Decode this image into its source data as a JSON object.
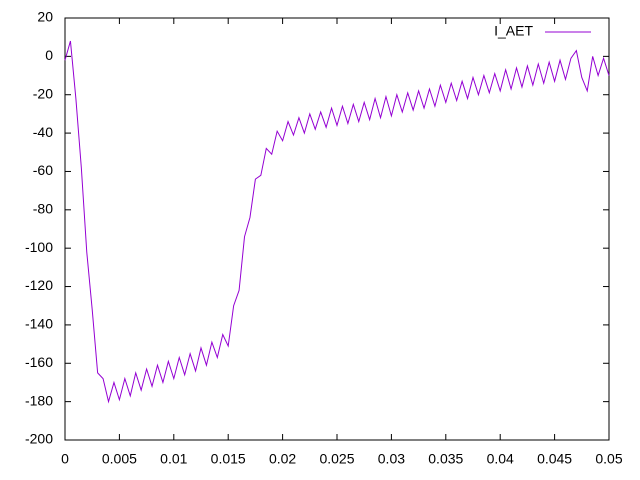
{
  "chart_data": {
    "type": "line",
    "x": [
      0,
      0.0005,
      0.001,
      0.0015,
      0.002,
      0.0025,
      0.003,
      0.0035,
      0.004,
      0.0045,
      0.005,
      0.0055,
      0.006,
      0.0065,
      0.007,
      0.0075,
      0.008,
      0.0085,
      0.009,
      0.0095,
      0.01,
      0.0105,
      0.011,
      0.0115,
      0.012,
      0.0125,
      0.013,
      0.0135,
      0.014,
      0.0145,
      0.015,
      0.0155,
      0.016,
      0.0165,
      0.017,
      0.0175,
      0.018,
      0.0185,
      0.019,
      0.0195,
      0.02,
      0.0205,
      0.021,
      0.0215,
      0.022,
      0.0225,
      0.023,
      0.0235,
      0.024,
      0.0245,
      0.025,
      0.0255,
      0.026,
      0.0265,
      0.027,
      0.0275,
      0.028,
      0.0285,
      0.029,
      0.0295,
      0.03,
      0.0305,
      0.031,
      0.0315,
      0.032,
      0.0325,
      0.033,
      0.0335,
      0.034,
      0.0345,
      0.035,
      0.0355,
      0.036,
      0.0365,
      0.037,
      0.0375,
      0.038,
      0.0385,
      0.039,
      0.0395,
      0.04,
      0.0405,
      0.041,
      0.0415,
      0.042,
      0.0425,
      0.043,
      0.0435,
      0.044,
      0.0445,
      0.045,
      0.0455,
      0.046,
      0.0465,
      0.047,
      0.0475,
      0.048,
      0.0485,
      0.049,
      0.0495,
      0.05
    ],
    "series": [
      {
        "name": "I_AET",
        "color": "#9400d3",
        "values": [
          -2,
          8,
          -22,
          -58,
          -102,
          -132,
          -165,
          -168,
          -180,
          -170,
          -179,
          -168,
          -177,
          -165,
          -174,
          -163,
          -172,
          -161,
          -170,
          -159,
          -168,
          -157,
          -166,
          -155,
          -164,
          -152,
          -161,
          -149,
          -157,
          -145,
          -151,
          -130,
          -122,
          -94,
          -84,
          -64,
          -62,
          -48,
          -51,
          -39,
          -44,
          -34,
          -41,
          -32,
          -40,
          -30,
          -38,
          -29,
          -37,
          -27,
          -36,
          -26,
          -35,
          -25,
          -34,
          -24,
          -33,
          -22,
          -32,
          -21,
          -31,
          -20,
          -29,
          -19,
          -28,
          -18,
          -27,
          -17,
          -26,
          -15,
          -24,
          -14,
          -23,
          -13,
          -22,
          -11,
          -20,
          -10,
          -19,
          -9,
          -18,
          -7,
          -17,
          -6,
          -16,
          -5,
          -15,
          -4,
          -14,
          -3,
          -13,
          -2,
          -12,
          -1,
          3,
          -11,
          -18,
          0,
          -10,
          -1,
          -10
        ]
      }
    ],
    "xlim": [
      0,
      0.05
    ],
    "xticks": [
      0,
      0.005,
      0.01,
      0.015,
      0.02,
      0.025,
      0.03,
      0.035,
      0.04,
      0.045,
      0.05
    ],
    "ylim": [
      -200,
      20
    ],
    "yticks": [
      -200,
      -180,
      -160,
      -140,
      -120,
      -100,
      -80,
      -60,
      -40,
      -20,
      0,
      20
    ],
    "grid": false,
    "legend": "top-right"
  }
}
